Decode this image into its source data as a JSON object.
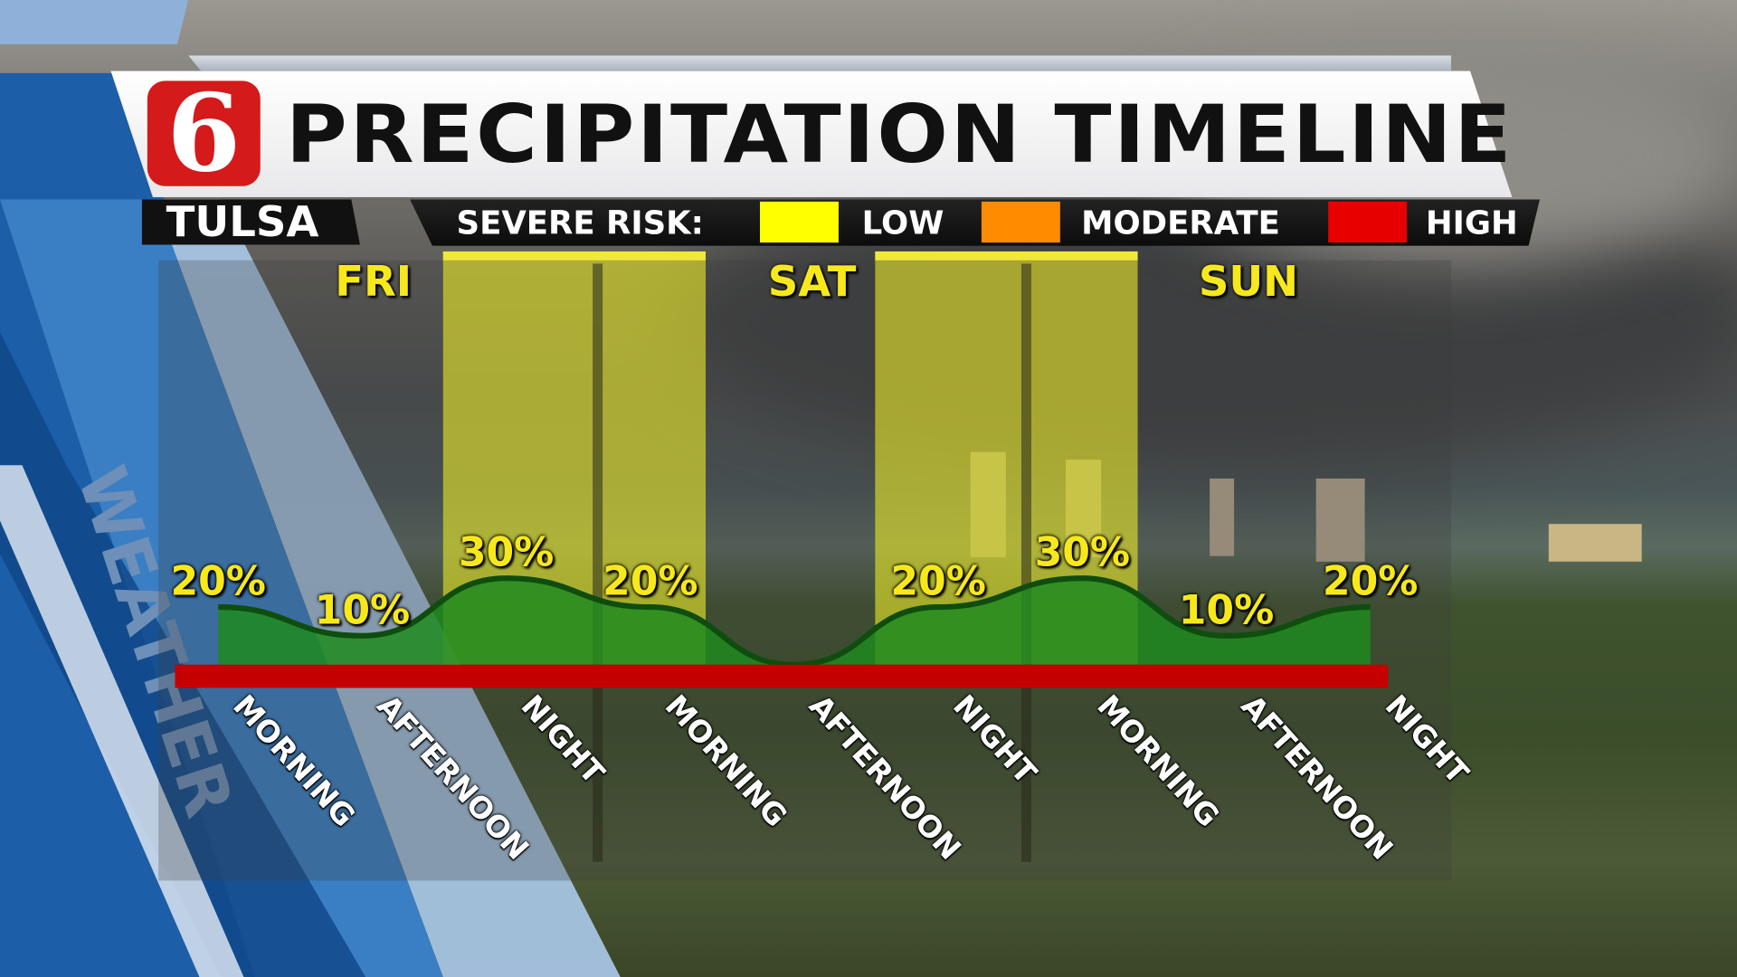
{
  "header": {
    "title": "PRECIPITATION TIMELINE",
    "logo_text": "6",
    "city": "TULSA"
  },
  "legend": {
    "label": "SEVERE RISK:",
    "items": [
      {
        "label": "LOW",
        "color": "#ffff00"
      },
      {
        "label": "MODERATE",
        "color": "#ff8c00"
      },
      {
        "label": "HIGH",
        "color": "#e60000"
      }
    ]
  },
  "watermark": "WEATHER",
  "chart_data": {
    "type": "area",
    "days": [
      "FRI",
      "SAT",
      "SUN"
    ],
    "categories": [
      "MORNING",
      "AFTERNOON",
      "NIGHT",
      "MORNING",
      "AFTERNOON",
      "NIGHT",
      "MORNING",
      "AFTERNOON",
      "NIGHT"
    ],
    "values": [
      20,
      10,
      30,
      20,
      0,
      20,
      30,
      10,
      20
    ],
    "labels": [
      "20%",
      "10%",
      "30%",
      "20%",
      "",
      "20%",
      "30%",
      "10%",
      "20%"
    ],
    "severe_risk_low_periods": [
      [
        2,
        3
      ],
      [
        5,
        6
      ]
    ],
    "baseline_risk": "HIGH",
    "ylim": [
      0,
      100
    ],
    "colors": {
      "area": "#1f8a1f",
      "line": "#0f4d0f",
      "low": "#ffff00",
      "baseline": "#c40000"
    }
  }
}
